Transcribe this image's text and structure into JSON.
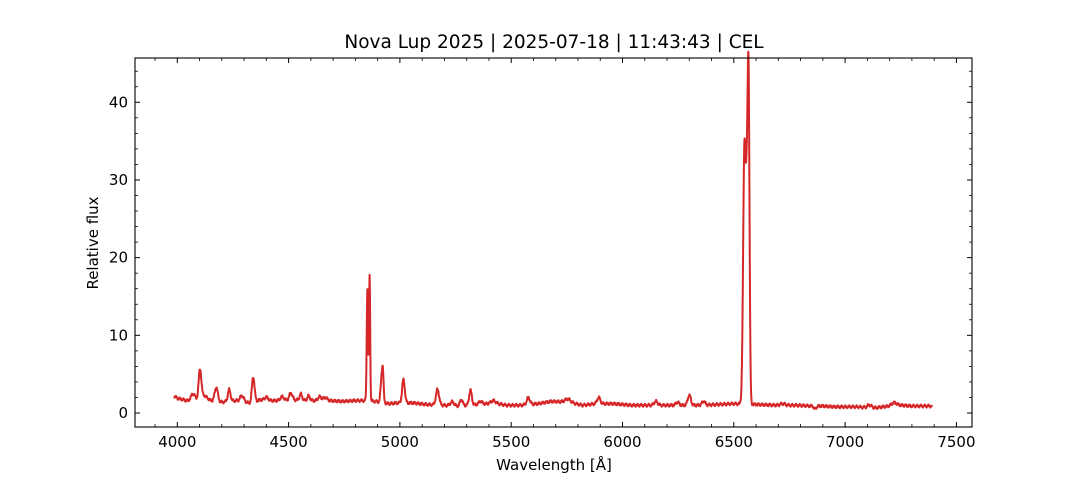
{
  "chart_data": {
    "type": "line",
    "title": "Nova Lup 2025 | 2025-07-18 | 11:43:43 | CEL",
    "xlabel": "Wavelength [Å]",
    "ylabel": "Relative flux",
    "xlim": [
      3810,
      7570
    ],
    "ylim": [
      -1.8,
      45.7
    ],
    "xticks": [
      4000,
      4500,
      5000,
      5500,
      6000,
      6500,
      7000,
      7500
    ],
    "yticks": [
      0,
      10,
      20,
      30,
      40
    ],
    "grid": false,
    "legend": "none",
    "series": [
      {
        "color": "#d62728",
        "baseline": [
          [
            3985,
            2.2
          ],
          [
            4000,
            1.9
          ],
          [
            4030,
            1.7
          ],
          [
            4060,
            1.4
          ],
          [
            4090,
            1.6
          ],
          [
            4120,
            2.3
          ],
          [
            4150,
            1.6
          ],
          [
            4200,
            1.4
          ],
          [
            4260,
            1.6
          ],
          [
            4300,
            1.5
          ],
          [
            4330,
            1.2
          ],
          [
            4370,
            1.7
          ],
          [
            4420,
            1.6
          ],
          [
            4470,
            1.6
          ],
          [
            4520,
            1.7
          ],
          [
            4580,
            1.6
          ],
          [
            4620,
            1.6
          ],
          [
            4680,
            1.6
          ],
          [
            4740,
            1.5
          ],
          [
            4800,
            1.6
          ],
          [
            4845,
            1.6
          ],
          [
            4890,
            1.5
          ],
          [
            4950,
            1.2
          ],
          [
            4990,
            1.3
          ],
          [
            5060,
            1.3
          ],
          [
            5120,
            1.1
          ],
          [
            5200,
            1.0
          ],
          [
            5260,
            0.9
          ],
          [
            5300,
            1.0
          ],
          [
            5360,
            1.1
          ],
          [
            5420,
            1.3
          ],
          [
            5480,
            1.0
          ],
          [
            5540,
            1.0
          ],
          [
            5620,
            1.2
          ],
          [
            5680,
            1.5
          ],
          [
            5760,
            1.4
          ],
          [
            5820,
            1.0
          ],
          [
            5880,
            1.2
          ],
          [
            5960,
            1.2
          ],
          [
            6040,
            1.0
          ],
          [
            6120,
            1.0
          ],
          [
            6200,
            1.0
          ],
          [
            6280,
            1.0
          ],
          [
            6350,
            1.0
          ],
          [
            6430,
            1.1
          ],
          [
            6500,
            1.2
          ],
          [
            6600,
            1.1
          ],
          [
            6700,
            1.0
          ],
          [
            6780,
            1.0
          ],
          [
            6850,
            0.9
          ],
          [
            6900,
            0.9
          ],
          [
            6950,
            0.8
          ],
          [
            7000,
            0.8
          ],
          [
            7060,
            0.8
          ],
          [
            7120,
            0.6
          ],
          [
            7170,
            0.8
          ],
          [
            7250,
            1.0
          ],
          [
            7300,
            0.9
          ],
          [
            7390,
            0.9
          ]
        ],
        "peaks": [
          [
            4070,
            1.0,
            10
          ],
          [
            4102,
            3.8,
            6
          ],
          [
            4175,
            1.8,
            7
          ],
          [
            4233,
            1.5,
            6
          ],
          [
            4290,
            0.7,
            8
          ],
          [
            4341,
            3.3,
            6
          ],
          [
            4400,
            0.4,
            8
          ],
          [
            4471,
            0.5,
            8
          ],
          [
            4510,
            0.9,
            7
          ],
          [
            4555,
            0.8,
            6
          ],
          [
            4590,
            0.6,
            6
          ],
          [
            4640,
            0.5,
            8
          ],
          [
            4665,
            0.4,
            8
          ],
          [
            4854,
            14.5,
            3
          ],
          [
            4864,
            16.2,
            2.5
          ],
          [
            4919,
            3.6,
            5
          ],
          [
            4924,
            2.2,
            3
          ],
          [
            5016,
            3.0,
            6
          ],
          [
            5169,
            2.0,
            7
          ],
          [
            5235,
            0.5,
            8
          ],
          [
            5276,
            0.8,
            6
          ],
          [
            5317,
            1.9,
            6
          ],
          [
            5362,
            0.4,
            8
          ],
          [
            5420,
            0.3,
            10
          ],
          [
            5577,
            0.9,
            7
          ],
          [
            5754,
            0.4,
            12
          ],
          [
            5893,
            0.8,
            7
          ],
          [
            6150,
            0.5,
            8
          ],
          [
            6247,
            0.4,
            7
          ],
          [
            6300,
            1.3,
            7
          ],
          [
            6364,
            0.5,
            7
          ],
          [
            6548,
            33.5,
            6
          ],
          [
            6558,
            16.0,
            4
          ],
          [
            6566,
            42.5,
            4.5
          ],
          [
            6720,
            0.2,
            10
          ],
          [
            6865,
            -0.4,
            5
          ],
          [
            7110,
            0.4,
            10
          ],
          [
            7220,
            0.4,
            12
          ]
        ],
        "x_range": [
          3985,
          7390
        ]
      }
    ]
  }
}
